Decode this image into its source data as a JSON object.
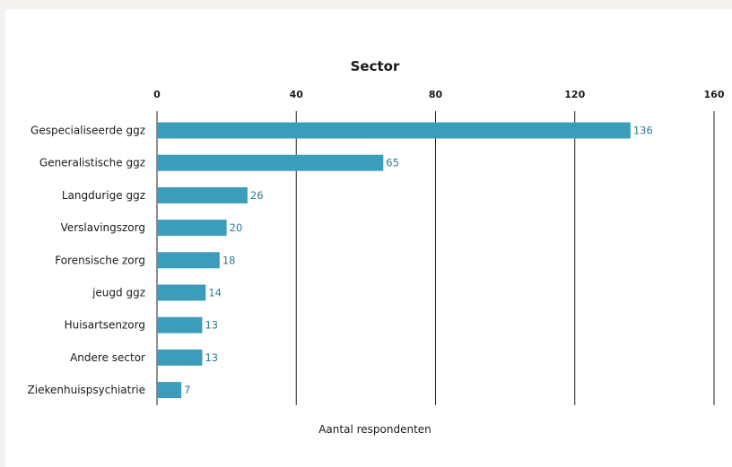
{
  "chart_data": {
    "type": "bar",
    "orientation": "horizontal",
    "title": "Sector",
    "xlabel": "Aantal respondenten",
    "ylabel": "",
    "xlim": [
      0,
      160
    ],
    "xticks": [
      0,
      40,
      80,
      120,
      160
    ],
    "tick_labels": [
      "0",
      "40",
      "80",
      "120",
      "160"
    ],
    "axis_position": "top",
    "grid": true,
    "categories": [
      "Gespecialiseerde ggz",
      "Generalistische ggz",
      "Langdurige ggz",
      "Verslavingszorg",
      "Forensische zorg",
      "jeugd ggz",
      "Huisartsenzorg",
      "Andere sector",
      "Ziekenhuispsychiatrie"
    ],
    "values": [
      136,
      65,
      26,
      20,
      18,
      14,
      13,
      13,
      7
    ],
    "value_labels": [
      "136",
      "65",
      "26",
      "20",
      "18",
      "14",
      "13",
      "13",
      "7"
    ],
    "colors": {
      "bar": "#3b9dbb",
      "value_label": "#2b7a99",
      "background": "#f4f2ee",
      "panel": "#ffffff",
      "text": "#1a1a1a"
    }
  }
}
